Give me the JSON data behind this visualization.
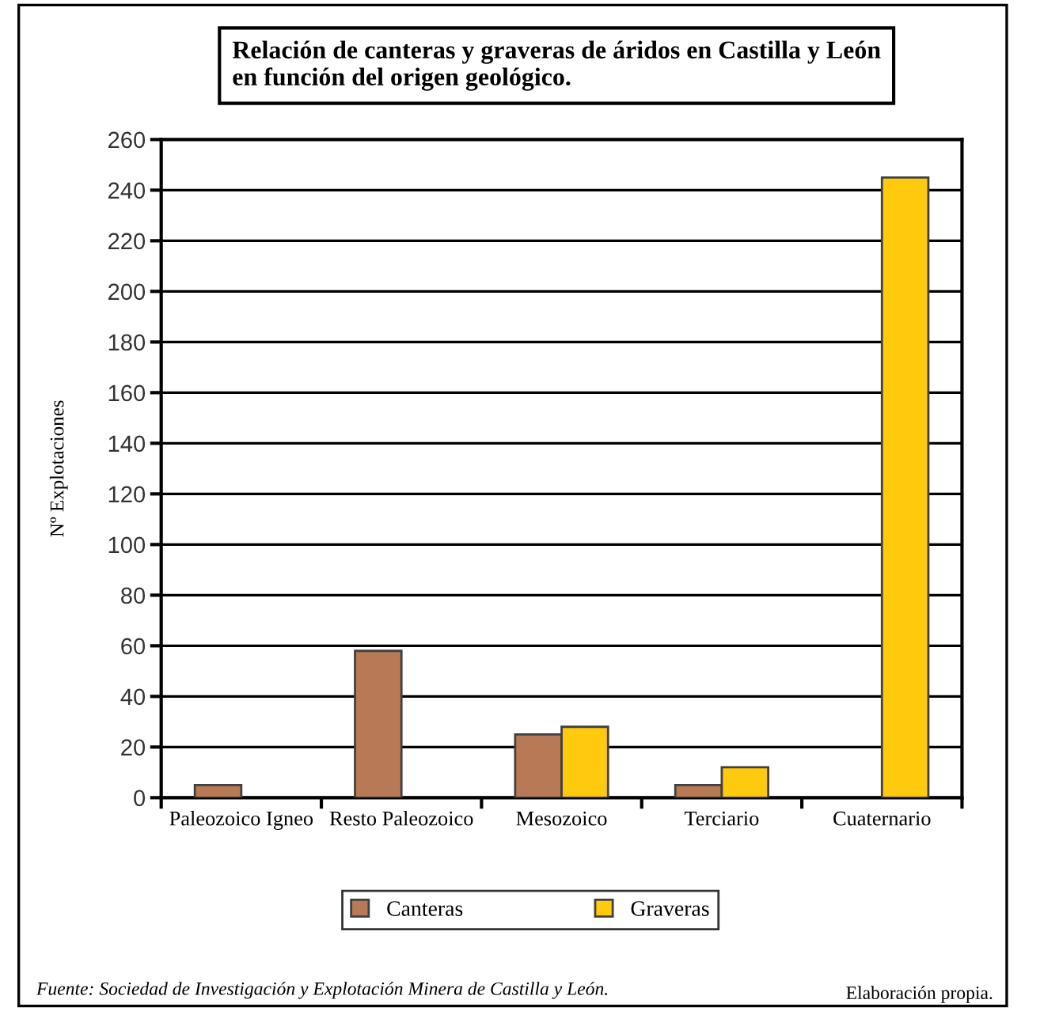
{
  "chart_data": {
    "type": "bar",
    "title": "Relación de canteras y graveras de áridos en Castilla y León en función del origen geológico.",
    "ylabel": "Nº Explotaciones",
    "categories": [
      "Paleozoico Igneo",
      "Resto Paleozoico",
      "Mesozoico",
      "Terciario",
      "Cuaternario"
    ],
    "series": [
      {
        "name": "Canteras",
        "color": "#b87a56",
        "values": [
          5,
          58,
          25,
          5,
          null
        ]
      },
      {
        "name": "Graveras",
        "color": "#ffc90e",
        "values": [
          null,
          null,
          28,
          12,
          245
        ]
      }
    ],
    "ylim": [
      0,
      260
    ],
    "yticks": [
      0,
      20,
      40,
      60,
      80,
      100,
      120,
      140,
      160,
      180,
      200,
      220,
      240,
      260
    ],
    "grid": "y",
    "legend": "bottom",
    "annotations": [
      "Fuente: Sociedad de Investigación y Explotación Minera de Castilla y León.",
      "Elaboración propia."
    ]
  }
}
